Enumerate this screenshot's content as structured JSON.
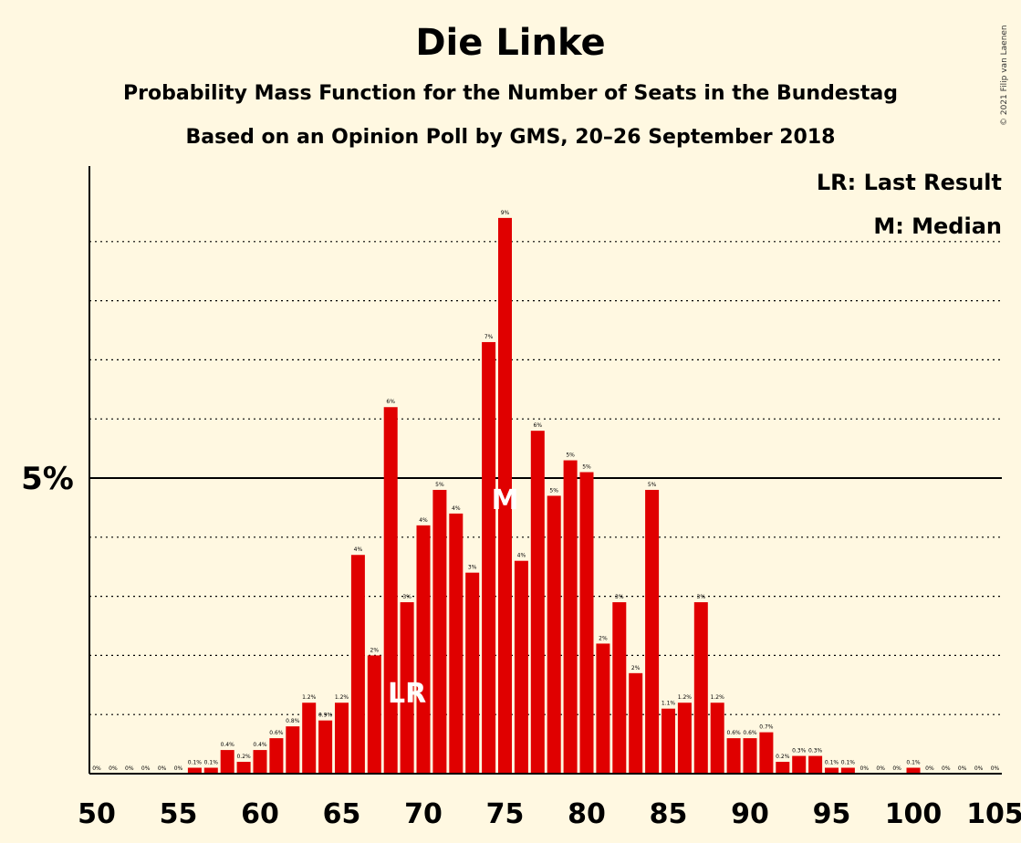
{
  "header": {
    "title": "Die Linke",
    "subtitle": "Probability Mass Function for the Number of Seats in the Bundestag",
    "subtitle2": "Based on an Opinion Poll by GMS, 20–26 September 2018",
    "copyright": "© 2021 Filip van Laenen"
  },
  "legend": {
    "last_result": "LR: Last Result",
    "median": "M: Median"
  },
  "colors": {
    "background": "#fff8e1",
    "bar": "#e00000",
    "text": "#000000"
  },
  "chart_data": {
    "type": "bar",
    "x": [
      50,
      51,
      52,
      53,
      54,
      55,
      56,
      57,
      58,
      59,
      60,
      61,
      62,
      63,
      64,
      65,
      66,
      67,
      68,
      69,
      70,
      71,
      72,
      73,
      74,
      75,
      76,
      77,
      78,
      79,
      80,
      81,
      82,
      83,
      84,
      85,
      86,
      87,
      88,
      89,
      90,
      91,
      92,
      93,
      94,
      95,
      96,
      97,
      98,
      99,
      100,
      101,
      102,
      103,
      104,
      105
    ],
    "values": [
      0,
      0,
      0,
      0,
      0,
      0,
      0.1,
      0.1,
      0.4,
      0.2,
      0.4,
      0.6,
      0.8,
      1.2,
      0.9,
      1.2,
      3.7,
      2.0,
      6.2,
      2.9,
      4.2,
      4.8,
      4.4,
      3.4,
      7.3,
      9.4,
      3.6,
      5.8,
      4.7,
      5.3,
      5.1,
      2.2,
      2.9,
      1.7,
      4.8,
      1.1,
      1.2,
      2.9,
      1.2,
      0.6,
      0.6,
      0.7,
      0.2,
      0.3,
      0.3,
      0.1,
      0.1,
      0,
      0,
      0,
      0.1,
      0,
      0,
      0,
      0,
      0
    ],
    "labels": [
      "0%",
      "0%",
      "0%",
      "0%",
      "0%",
      "0%",
      "0.1%",
      "0.1%",
      "0.4%",
      "0.2%",
      "0.4%",
      "0.6%",
      "0.8%",
      "1.2%",
      "0.9%",
      "1.2%",
      "4%",
      "2%",
      "6%",
      "3%",
      "4%",
      "5%",
      "4%",
      "3%",
      "7%",
      "9%",
      "4%",
      "6%",
      "5%",
      "5%",
      "5%",
      "2%",
      "3%",
      "2%",
      "5%",
      "1.1%",
      "1.2%",
      "3%",
      "1.2%",
      "0.6%",
      "0.6%",
      "0.7%",
      "0.2%",
      "0.3%",
      "0.3%",
      "0.1%",
      "0.1%",
      "0%",
      "0%",
      "0%",
      "0.1%",
      "0%",
      "0%",
      "0%",
      "0%",
      "0%"
    ],
    "x_ticks": [
      50,
      55,
      60,
      65,
      70,
      75,
      80,
      85,
      90,
      95,
      100,
      105
    ],
    "y_tick_label": "5%",
    "y_tick_value": 5,
    "ylim": [
      0,
      10
    ],
    "last_result": {
      "seat": 69,
      "label": "LR"
    },
    "median": {
      "seat": 75,
      "label": "M"
    },
    "grid": true
  }
}
